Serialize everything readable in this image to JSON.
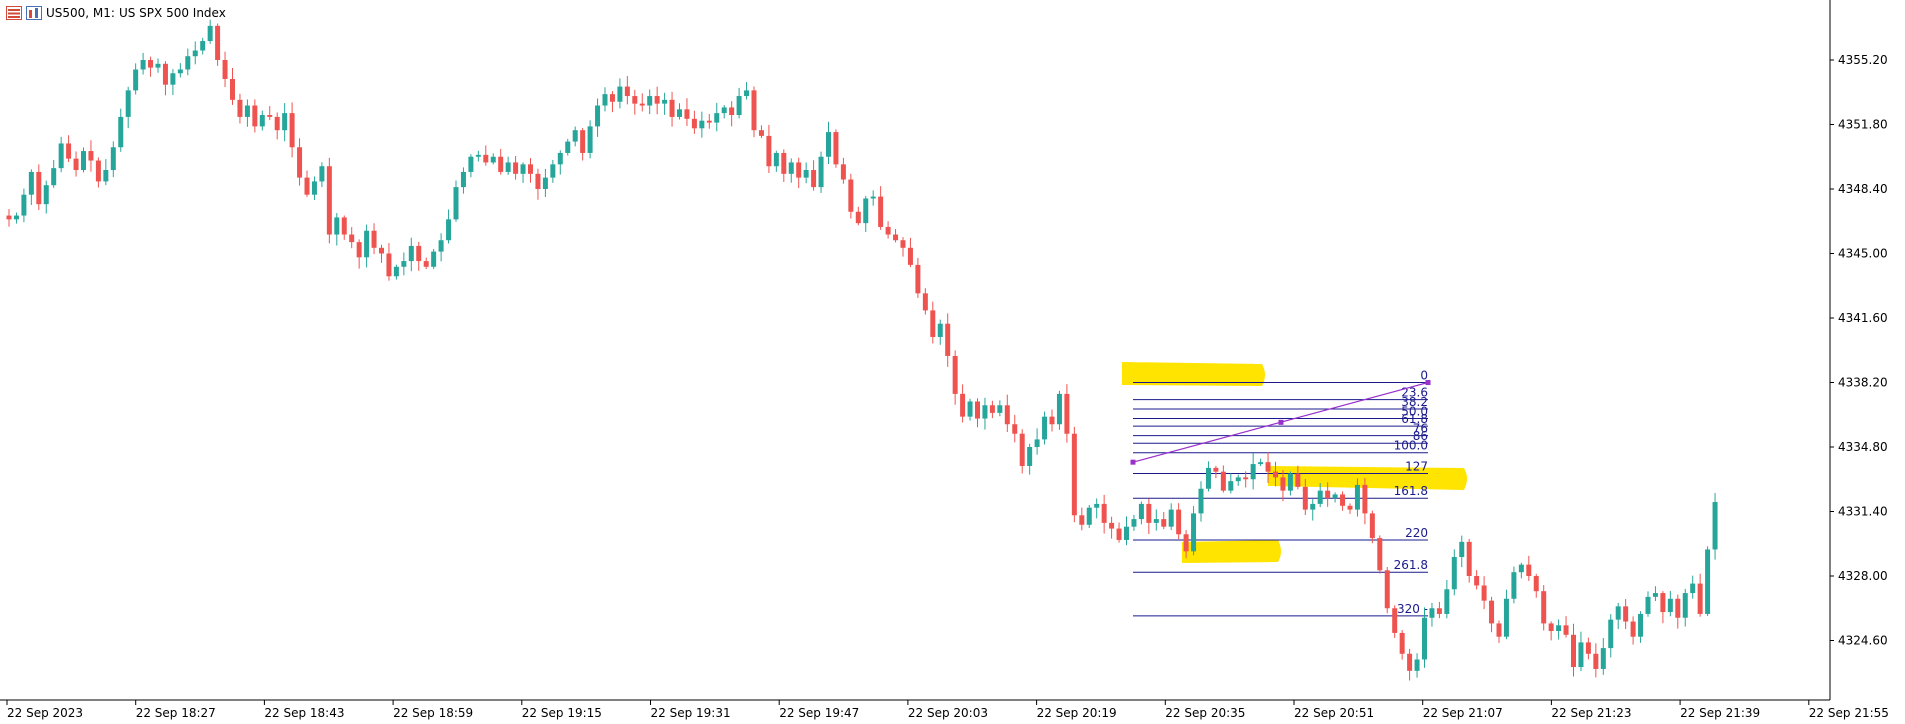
{
  "header": {
    "symbol_label": "US500, M1:",
    "description": "US SPX 500 Index",
    "icons": [
      "bars-icon",
      "chart-window-icon"
    ]
  },
  "colors": {
    "bull": "#26a69a",
    "bear": "#ef5350",
    "fib_line": "#1a1a8c",
    "trend_line": "#9932cc",
    "highlight": "#ffe400",
    "axis": "#000000"
  },
  "price_axis": {
    "labels": [
      "4355.20",
      "4351.80",
      "4348.40",
      "4345.00",
      "4341.60",
      "4338.20",
      "4334.80",
      "4331.40",
      "4328.00",
      "4324.60"
    ],
    "values": [
      4355.2,
      4351.8,
      4348.4,
      4345.0,
      4341.6,
      4338.2,
      4334.8,
      4331.4,
      4328.0,
      4324.6
    ]
  },
  "time_axis": {
    "labels": [
      "22 Sep 2023",
      "22 Sep 18:27",
      "22 Sep 18:43",
      "22 Sep 18:59",
      "22 Sep 19:15",
      "22 Sep 19:31",
      "22 Sep 19:47",
      "22 Sep 20:03",
      "22 Sep 20:19",
      "22 Sep 20:35",
      "22 Sep 20:51",
      "22 Sep 21:07",
      "22 Sep 21:23",
      "22 Sep 21:39",
      "22 Sep 21:55"
    ]
  },
  "fibonacci": {
    "levels": [
      "0",
      "23.6",
      "38.2",
      "50.0",
      "61.8",
      "76",
      "86",
      "100.0",
      "127",
      "161.8",
      "220",
      "261.8",
      "320 -"
    ],
    "prices": [
      4338.2,
      4337.3,
      4336.8,
      4336.3,
      4335.9,
      4335.4,
      4335.0,
      4334.5,
      4333.4,
      4332.1,
      4329.9,
      4328.2,
      4325.9
    ]
  },
  "chart_data": {
    "type": "candlestick",
    "symbol": "US500",
    "timeframe": "M1",
    "ylim": [
      4321.6,
      4358.0
    ],
    "closes": [
      4346.8,
      4347.0,
      4348.1,
      4349.3,
      4347.6,
      4348.6,
      4349.5,
      4350.8,
      4350.0,
      4349.4,
      4350.4,
      4349.9,
      4348.8,
      4349.4,
      4350.6,
      4352.2,
      4353.6,
      4354.7,
      4355.2,
      4354.8,
      4355.0,
      4353.9,
      4354.5,
      4354.7,
      4355.4,
      4355.7,
      4356.2,
      4357.0,
      4355.2,
      4354.2,
      4353.1,
      4352.2,
      4352.8,
      4351.7,
      4352.3,
      4352.2,
      4351.5,
      4352.4,
      4350.6,
      4349.0,
      4348.1,
      4348.8,
      4349.6,
      4346.0,
      4346.9,
      4346.0,
      4345.6,
      4344.8,
      4346.2,
      4345.3,
      4345.0,
      4343.8,
      4344.3,
      4344.6,
      4345.4,
      4344.6,
      4344.3,
      4345.1,
      4345.7,
      4346.8,
      4348.5,
      4349.3,
      4350.1,
      4350.2,
      4349.8,
      4350.1,
      4349.3,
      4349.8,
      4349.2,
      4349.7,
      4349.2,
      4348.4,
      4349.0,
      4349.7,
      4350.3,
      4350.9,
      4351.5,
      4350.3,
      4351.7,
      4352.8,
      4353.4,
      4353.0,
      4353.8,
      4353.3,
      4352.9,
      4352.8,
      4353.3,
      4352.9,
      4353.1,
      4352.2,
      4352.6,
      4352.1,
      4351.6,
      4352.0,
      4351.9,
      4352.4,
      4352.7,
      4352.3,
      4353.3,
      4353.6,
      4351.5,
      4351.2,
      4349.6,
      4350.3,
      4349.2,
      4349.8,
      4349.0,
      4349.4,
      4348.5,
      4350.1,
      4351.4,
      4349.7,
      4348.9,
      4347.2,
      4346.6,
      4347.9,
      4348.0,
      4346.4,
      4346.0,
      4345.7,
      4345.3,
      4344.4,
      4342.9,
      4342.0,
      4340.6,
      4341.3,
      4339.6,
      4337.6,
      4336.4,
      4337.2,
      4336.3,
      4337.0,
      4336.6,
      4337.0,
      4336.0,
      4335.5,
      4333.8,
      4334.8,
      4335.2,
      4336.4,
      4336.0,
      4337.6,
      4335.5,
      4331.2,
      4330.7,
      4331.6,
      4331.8,
      4330.8,
      4330.5,
      4329.9,
      4330.6,
      4331.0,
      4331.8,
      4330.8,
      4331.0,
      4330.6,
      4331.5,
      4330.2,
      4329.3,
      4331.3,
      4332.6,
      4333.7,
      4333.5,
      4332.5,
      4333.0,
      4333.2,
      4333.1,
      4333.9,
      4334.0,
      4333.5,
      4333.2,
      4332.5,
      4333.4,
      4332.7,
      4331.5,
      4331.8,
      4332.5,
      4332.1,
      4332.3,
      4331.7,
      4331.5,
      4332.8,
      4331.3,
      4330.0,
      4328.3,
      4326.3,
      4325.0,
      4323.9,
      4323.0,
      4323.6,
      4325.8,
      4326.3,
      4326.0,
      4327.3,
      4329.0,
      4329.8,
      4328.0,
      4327.5,
      4326.7,
      4325.5,
      4324.8,
      4326.8,
      4328.2,
      4328.6,
      4328.0,
      4327.2,
      4325.5,
      4325.1,
      4325.4,
      4324.9,
      4323.2,
      4324.5,
      4323.9,
      4323.1,
      4324.2,
      4325.7,
      4326.4,
      4325.6,
      4324.8,
      4326.0,
      4326.9,
      4327.1,
      4326.1,
      4326.8,
      4325.8,
      4327.1,
      4327.6,
      4326.0,
      4329.4,
      4331.9
    ],
    "first_open": 4347.0
  }
}
